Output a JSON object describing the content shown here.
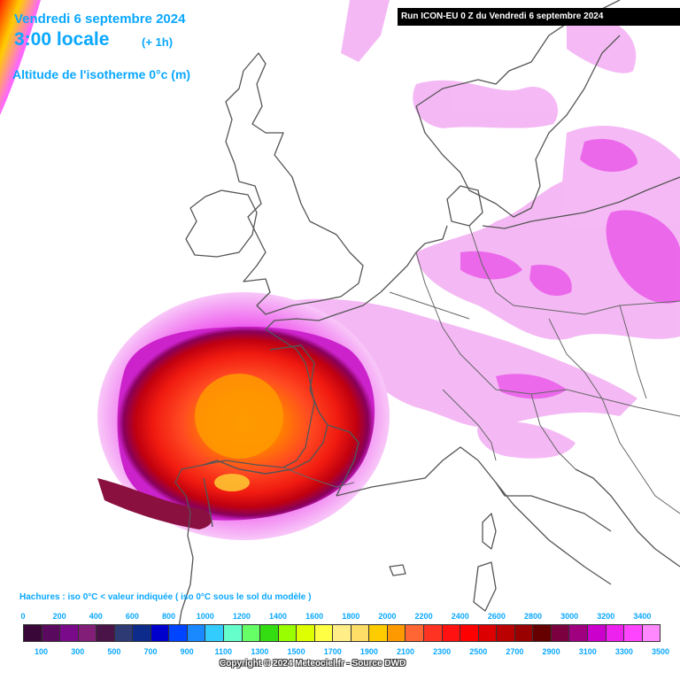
{
  "header": {
    "date": "Vendredi 6 septembre 2024",
    "time": "3:00 locale",
    "offset": "(+ 1h)",
    "parameter": "Altitude de l'isotherme 0°c (m)"
  },
  "run_info": "Run ICON-EU 0 Z du Vendredi 6 septembre 2024",
  "hatch_note": "Hachures : iso 0°C < valeur indiquée ( iso 0°C sous le sol du modèle )",
  "legend": {
    "top_labels": [
      "0",
      "200",
      "400",
      "600",
      "800",
      "1000",
      "1200",
      "1400",
      "1600",
      "1800",
      "2000",
      "2200",
      "2400",
      "2600",
      "2800",
      "3000",
      "3200",
      "3400"
    ],
    "bottom_labels": [
      "100",
      "300",
      "500",
      "700",
      "900",
      "1100",
      "1300",
      "1500",
      "1700",
      "1900",
      "2100",
      "2300",
      "2500",
      "2700",
      "2900",
      "3100",
      "3300",
      "3500"
    ],
    "colors": [
      "#3a0838",
      "#5a0a5e",
      "#7a0a8a",
      "#821e78",
      "#4a1448",
      "#2e3a74",
      "#0d2b8a",
      "#0000cc",
      "#0044ff",
      "#1a88ff",
      "#33ccff",
      "#66ffcc",
      "#66ff66",
      "#33dd11",
      "#99ff00",
      "#ddff00",
      "#ffff44",
      "#ffee88",
      "#ffdd66",
      "#ffcc00",
      "#ff9900",
      "#ff6633",
      "#ff3322",
      "#ff1111",
      "#ff0000",
      "#dd0000",
      "#bb0000",
      "#990000",
      "#660000",
      "#7a0040",
      "#a00080",
      "#cc00cc",
      "#ee22ee",
      "#ff44ff",
      "#ff88ff"
    ]
  },
  "copyright": "Copyright © 2024 Meteociel.fr - Source DWD",
  "map": {
    "region": "Europe de l'Ouest",
    "land_color": "#ffffff",
    "border_color": "#555555",
    "pink_light": "#f6b8f6",
    "pink": "#ee66ee",
    "magenta": "#dd22dd"
  }
}
